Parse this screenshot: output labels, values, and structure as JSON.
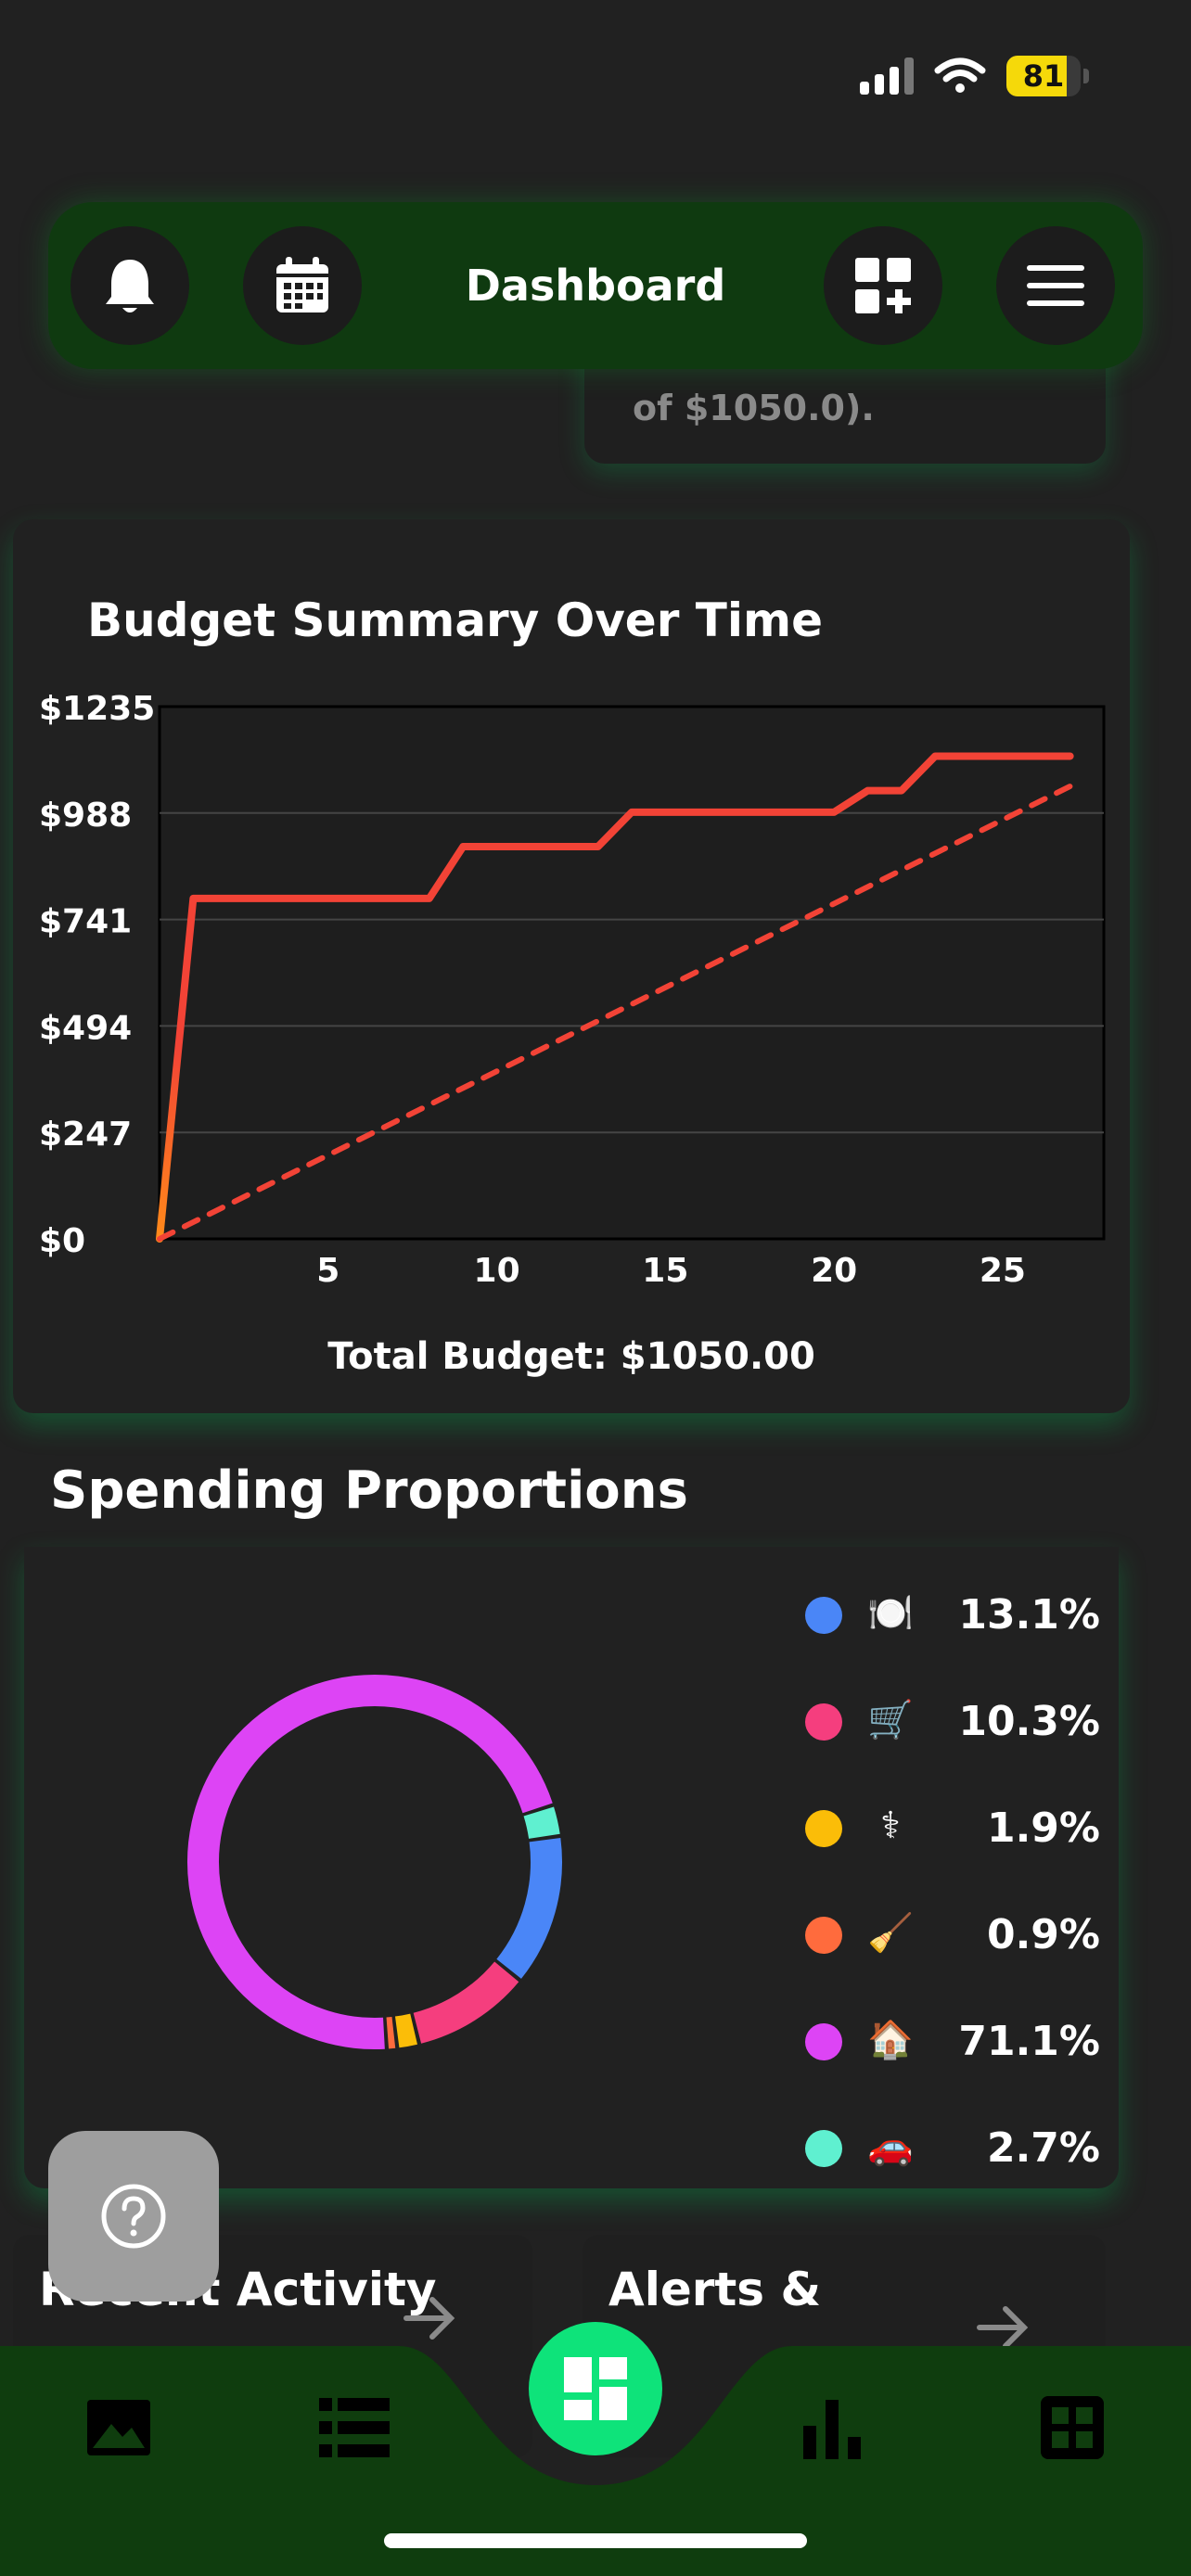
{
  "status_bar": {
    "battery": "81",
    "battery_level": 0.81
  },
  "header": {
    "title": "Dashboard"
  },
  "peek_card": {
    "text": "of $1050.0)."
  },
  "budget": {
    "title": "Budget Summary Over Time",
    "total_label": "Total Budget: $1050.00"
  },
  "chart_data": {
    "type": "line",
    "title": "Budget Summary Over Time",
    "xlabel": "",
    "ylabel": "",
    "xlim": [
      0,
      28
    ],
    "ylim": [
      0,
      1235
    ],
    "x_ticks": [
      "5",
      "10",
      "15",
      "20",
      "25"
    ],
    "x_tick_values": [
      5,
      10,
      15,
      20,
      25
    ],
    "y_ticks": [
      "$0",
      "$247",
      "$494",
      "$741",
      "$988",
      "$1235"
    ],
    "y_tick_values": [
      0,
      247,
      494,
      741,
      988,
      1235
    ],
    "grid": true,
    "series": [
      {
        "style": "solid",
        "color": "#f24336",
        "x": [
          0,
          1,
          2,
          3,
          4,
          5,
          6,
          7,
          8,
          9,
          10,
          11,
          12,
          13,
          14,
          15,
          16,
          17,
          18,
          19,
          20,
          21,
          22,
          23,
          24,
          25,
          26,
          27
        ],
        "y": [
          0,
          790,
          790,
          790,
          790,
          790,
          790,
          790,
          790,
          910,
          910,
          910,
          910,
          910,
          990,
          990,
          990,
          990,
          990,
          990,
          990,
          1040,
          1040,
          1120,
          1120,
          1120,
          1120,
          1120
        ]
      },
      {
        "style": "dashed",
        "color": "#f24336",
        "x": [
          0,
          27
        ],
        "y": [
          0,
          1050
        ]
      }
    ]
  },
  "spending": {
    "title": "Spending Proportions",
    "items": [
      {
        "icon": "🍽️",
        "value": "13.1%",
        "pct": 13.1,
        "color": "#4a86f7"
      },
      {
        "icon": "🛒",
        "value": "10.3%",
        "pct": 10.3,
        "color": "#f53e7e"
      },
      {
        "icon": "⚕",
        "value": "1.9%",
        "pct": 1.9,
        "color": "#fbbd08"
      },
      {
        "icon": "🧹",
        "value": "0.9%",
        "pct": 0.9,
        "color": "#ff6b3d"
      },
      {
        "icon": "🏠",
        "value": "71.1%",
        "pct": 71.1,
        "color": "#dd44f5"
      },
      {
        "icon": "🚗",
        "value": "2.7%",
        "pct": 2.7,
        "color": "#5ff0d0"
      }
    ]
  },
  "cards": {
    "recent": "Recent Activity",
    "alerts": "Alerts &"
  },
  "colors": {
    "nav": "#0f3d0e",
    "fab": "#0ee37a",
    "accent": "#f24336"
  }
}
